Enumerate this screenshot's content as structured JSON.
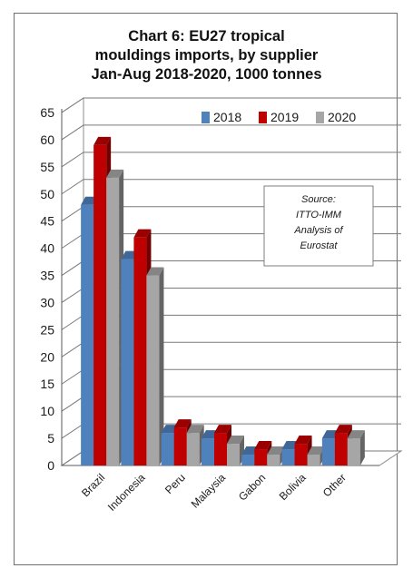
{
  "chart_data": {
    "type": "bar",
    "title": [
      "Chart 6: EU27 tropical",
      "mouldings imports, by supplier",
      "Jan-Aug 2018-2020, 1000 tonnes"
    ],
    "categories": [
      "Brazil",
      "Indonesia",
      "Peru",
      "Malaysia",
      "Gabon",
      "Bolivia",
      "Other"
    ],
    "series": [
      {
        "name": "2018",
        "values": [
          48,
          38,
          6,
          5,
          2,
          3,
          5
        ],
        "color": "#4f81bd"
      },
      {
        "name": "2019",
        "values": [
          59,
          42,
          7,
          6,
          3,
          4,
          6
        ],
        "color": "#c00000"
      },
      {
        "name": "2020",
        "values": [
          53,
          35,
          6,
          4,
          2,
          2,
          5
        ],
        "color": "#a6a6a6"
      }
    ],
    "ylim": [
      0,
      65
    ],
    "yticks": [
      "0",
      "5",
      "10",
      "15",
      "20",
      "25",
      "30",
      "35",
      "40",
      "45",
      "50",
      "55",
      "60",
      "65"
    ],
    "grid": true,
    "legend_position": "top-right",
    "style": "3d-clustered-column",
    "annotation": [
      "Source:",
      "ITTO-IMM",
      "Analysis of",
      "Eurostat"
    ]
  }
}
